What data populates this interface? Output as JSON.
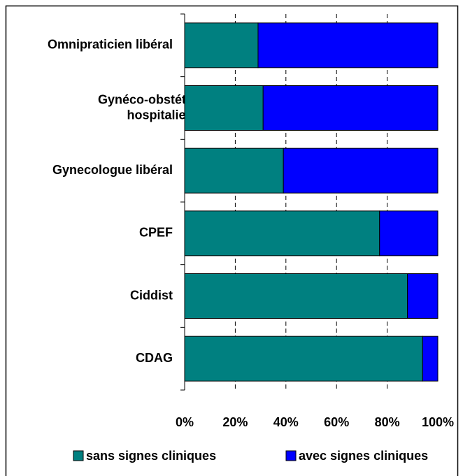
{
  "chart_data": {
    "type": "bar",
    "orientation": "horizontal",
    "stacked": true,
    "categories": [
      "Omnipraticien libéral",
      "Gynéco-obstétricien hospitalier",
      "Gynecologue libéral",
      "CPEF",
      "Ciddist",
      "CDAG"
    ],
    "series": [
      {
        "name": "sans signes cliniques",
        "color": "#008080",
        "values": [
          29,
          31,
          39,
          77,
          88,
          94
        ]
      },
      {
        "name": "avec signes cliniques",
        "color": "#0000ff",
        "values": [
          71,
          69,
          61,
          23,
          12,
          6
        ]
      }
    ],
    "xlim": [
      0,
      100
    ],
    "xticks": [
      {
        "value": 0,
        "label": "0%"
      },
      {
        "value": 20,
        "label": "20%"
      },
      {
        "value": 40,
        "label": "40%"
      },
      {
        "value": 60,
        "label": "60%"
      },
      {
        "value": 80,
        "label": "80%"
      },
      {
        "value": 100,
        "label": "100%"
      }
    ],
    "grid": true,
    "legend": "bottom"
  }
}
